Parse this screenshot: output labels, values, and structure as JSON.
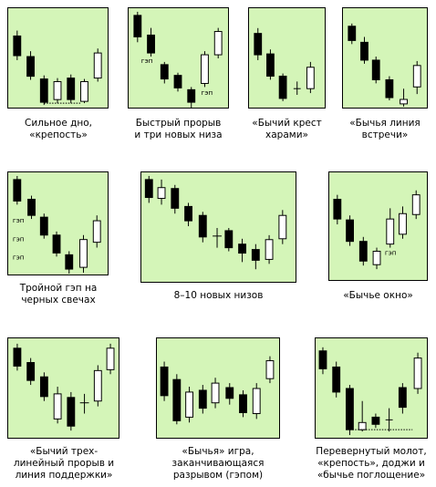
{
  "colors": {
    "panel_bg": "#d4f5b8",
    "bull": "#ffffff",
    "bear": "#000000"
  },
  "patterns": [
    {
      "caption": "Сильное дно,\n«крепость»",
      "gap_labels": []
    },
    {
      "caption": "Быстрый прорыв\nи три новых низа",
      "gap_labels": [
        "гэп",
        "гэп"
      ]
    },
    {
      "caption": "«Бычий крест\nхарами»",
      "gap_labels": []
    },
    {
      "caption": "«Бычья линия\nвстречи»",
      "gap_labels": []
    },
    {
      "caption": "Тройной гэп на\nчерных свечах",
      "gap_labels": [
        "гэп",
        "гэп",
        "гэп"
      ]
    },
    {
      "caption": "8–10 новых низов",
      "gap_labels": []
    },
    {
      "caption": "«Бычье окно»",
      "gap_labels": [
        "гэп"
      ]
    },
    {
      "caption": "«Бычий трех-\nлинейный прорыв и\nлиния поддержки»",
      "gap_labels": []
    },
    {
      "caption": "«Бычья» игра,\nзаканчивающаяся\nразрывом (гэпом)",
      "gap_labels": []
    },
    {
      "caption": "Перевернутый молот,\n«крепость», доджи и\n«бычье поглощение»",
      "gap_labels": []
    }
  ]
}
